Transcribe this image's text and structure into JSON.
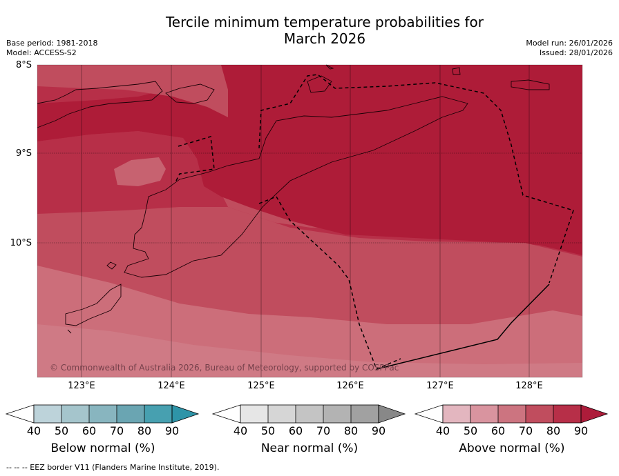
{
  "title_line1": "Tercile minimum temperature probabilities for",
  "title_line2": "March 2026",
  "base_period": "Base period: 1981-2018",
  "model": "Model: ACCESS-S2",
  "model_run": "Model run: 26/01/2026",
  "issued": "Issued: 28/01/2026",
  "lat_labels": [
    "8°S",
    "9°S",
    "10°S"
  ],
  "lon_labels": [
    "123°E",
    "124°E",
    "125°E",
    "126°E",
    "127°E",
    "128°E"
  ],
  "copyright": "© Commonwealth of Australia 2026, Bureau of Meteorology, supported by COSPPac",
  "colorbars": [
    {
      "label": "Below normal (%)",
      "ticks": [
        "40",
        "50",
        "60",
        "70",
        "80",
        "90"
      ],
      "colors": [
        "#bdd3da",
        "#a5c5cc",
        "#88b5bf",
        "#6aa5b2",
        "#47a0b0",
        "#2e94a8"
      ]
    },
    {
      "label": "Near normal (%)",
      "ticks": [
        "40",
        "50",
        "60",
        "70",
        "80",
        "90"
      ],
      "colors": [
        "#e6e6e6",
        "#d6d6d6",
        "#c4c4c4",
        "#b3b3b3",
        "#a1a1a1",
        "#888888"
      ]
    },
    {
      "label": "Above normal (%)",
      "ticks": [
        "40",
        "50",
        "60",
        "70",
        "80",
        "90"
      ],
      "colors": [
        "#e3b6bf",
        "#d9949f",
        "#cc7480",
        "#c04d5e",
        "#b72f48",
        "#ad1c3a"
      ]
    }
  ],
  "footer": "--  --  -- EEZ border V11 (Flanders Marine Institute, 2019).",
  "colors": {
    "p90": "#ae1c38",
    "p80": "#b72f48",
    "p70": "#c04d5e",
    "p60": "#cc6e7a",
    "p50": "#d59099"
  }
}
